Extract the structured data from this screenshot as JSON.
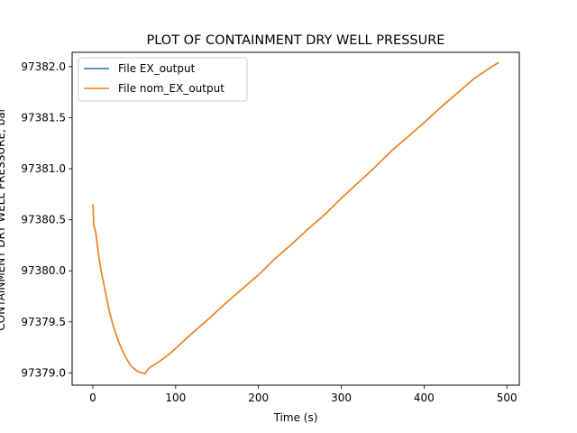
{
  "chart_data": {
    "type": "line",
    "title": "PLOT OF CONTAINMENT DRY WELL PRESSURE",
    "xlabel": "Time (s)",
    "ylabel": "CONTAINMENT DRY WELL PRESSURE, bar",
    "xlim": [
      -25,
      515
    ],
    "ylim": [
      97378.88,
      97382.14
    ],
    "x_ticks": [
      0,
      100,
      200,
      300,
      400,
      500
    ],
    "y_ticks": [
      97379.0,
      97379.5,
      97380.0,
      97380.5,
      97381.0,
      97381.5,
      97382.0
    ],
    "y_tick_labels": [
      "97379.0",
      "97379.5",
      "97380.0",
      "97380.5",
      "97381.0",
      "97381.5",
      "97382.0"
    ],
    "grid": false,
    "legend_position": "top-left",
    "series": [
      {
        "name": "File EX_output",
        "color": "#1f77b4",
        "x": [
          0,
          0.5,
          1,
          2,
          3,
          4,
          5,
          8,
          10,
          15,
          20,
          25,
          30,
          35,
          40,
          45,
          50,
          55,
          60,
          63,
          65,
          70,
          80,
          90,
          100,
          120,
          140,
          160,
          180,
          200,
          220,
          240,
          260,
          280,
          300,
          320,
          340,
          360,
          380,
          400,
          420,
          440,
          460,
          480,
          490
        ],
        "y": [
          97380.65,
          97380.6,
          97380.45,
          97380.42,
          97380.4,
          97380.35,
          97380.28,
          97380.1,
          97380.0,
          97379.8,
          97379.6,
          97379.45,
          97379.33,
          97379.23,
          97379.15,
          97379.08,
          97379.04,
          97379.01,
          97379.0,
          97378.99,
          97379.02,
          97379.06,
          97379.11,
          97379.17,
          97379.24,
          97379.39,
          97379.53,
          97379.68,
          97379.82,
          97379.96,
          97380.12,
          97380.26,
          97380.41,
          97380.55,
          97380.71,
          97380.86,
          97381.01,
          97381.17,
          97381.31,
          97381.45,
          97381.6,
          97381.74,
          97381.88,
          97381.99,
          97382.04
        ]
      },
      {
        "name": "File nom_EX_output",
        "color": "#ff7f0e",
        "x": [
          0,
          0.5,
          1,
          2,
          3,
          4,
          5,
          8,
          10,
          15,
          20,
          25,
          30,
          35,
          40,
          45,
          50,
          55,
          60,
          63,
          65,
          70,
          80,
          90,
          100,
          120,
          140,
          160,
          180,
          200,
          220,
          240,
          260,
          280,
          300,
          320,
          340,
          360,
          380,
          400,
          420,
          440,
          460,
          480,
          490
        ],
        "y": [
          97380.65,
          97380.6,
          97380.45,
          97380.42,
          97380.4,
          97380.35,
          97380.28,
          97380.1,
          97380.0,
          97379.8,
          97379.6,
          97379.45,
          97379.33,
          97379.23,
          97379.15,
          97379.08,
          97379.04,
          97379.01,
          97379.0,
          97378.99,
          97379.02,
          97379.06,
          97379.11,
          97379.17,
          97379.24,
          97379.39,
          97379.53,
          97379.68,
          97379.82,
          97379.96,
          97380.12,
          97380.26,
          97380.41,
          97380.55,
          97380.71,
          97380.86,
          97381.01,
          97381.17,
          97381.31,
          97381.45,
          97381.6,
          97381.74,
          97381.88,
          97381.99,
          97382.04
        ]
      }
    ]
  }
}
